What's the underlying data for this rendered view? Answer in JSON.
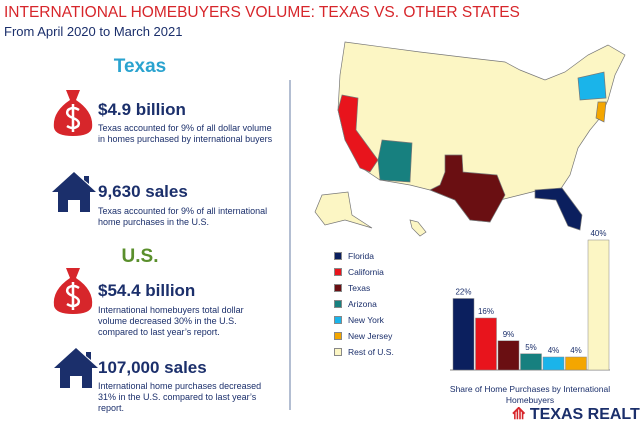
{
  "header": {
    "title": "INTERNATIONAL HOMEBUYERS VOLUME: TEXAS VS. OTHER STATES",
    "subtitle": "From April 2020 to March 2021"
  },
  "sections": [
    {
      "heading": "Texas",
      "stats": [
        {
          "value": "$4.9 billion",
          "text": "Texas accounted for 9% of all dollar volume in homes purchased by international buyers"
        },
        {
          "value": "9,630 sales",
          "text": "Texas accounted for 9% of all international home purchases in the U.S."
        }
      ]
    },
    {
      "heading": "U.S.",
      "stats": [
        {
          "value": "$54.4 billion",
          "text": "International homebuyers total dollar volume decreased 30% in the U.S. compared to last year’s report."
        },
        {
          "value": "107,000 sales",
          "text": "International home purchases decreased 31% in the U.S. compared to last year’s report."
        }
      ]
    }
  ],
  "chart_data": {
    "type": "bar",
    "categories": [
      "Florida",
      "California",
      "Texas",
      "Arizona",
      "New York",
      "New Jersey",
      "Rest of U.S."
    ],
    "values": [
      22,
      16,
      9,
      5,
      4,
      4,
      40
    ],
    "value_labels": [
      "22%",
      "16%",
      "9%",
      "5%",
      "4%",
      "4%",
      "40%"
    ],
    "colors": [
      "#0b1f5e",
      "#e8141c",
      "#6a0f12",
      "#17807f",
      "#1ab4ea",
      "#f4a600",
      "#fcf6c4"
    ],
    "xlabel": "Share of Home Purchases by International Homebuyers"
  },
  "logo": "TEXAS REALTORS"
}
